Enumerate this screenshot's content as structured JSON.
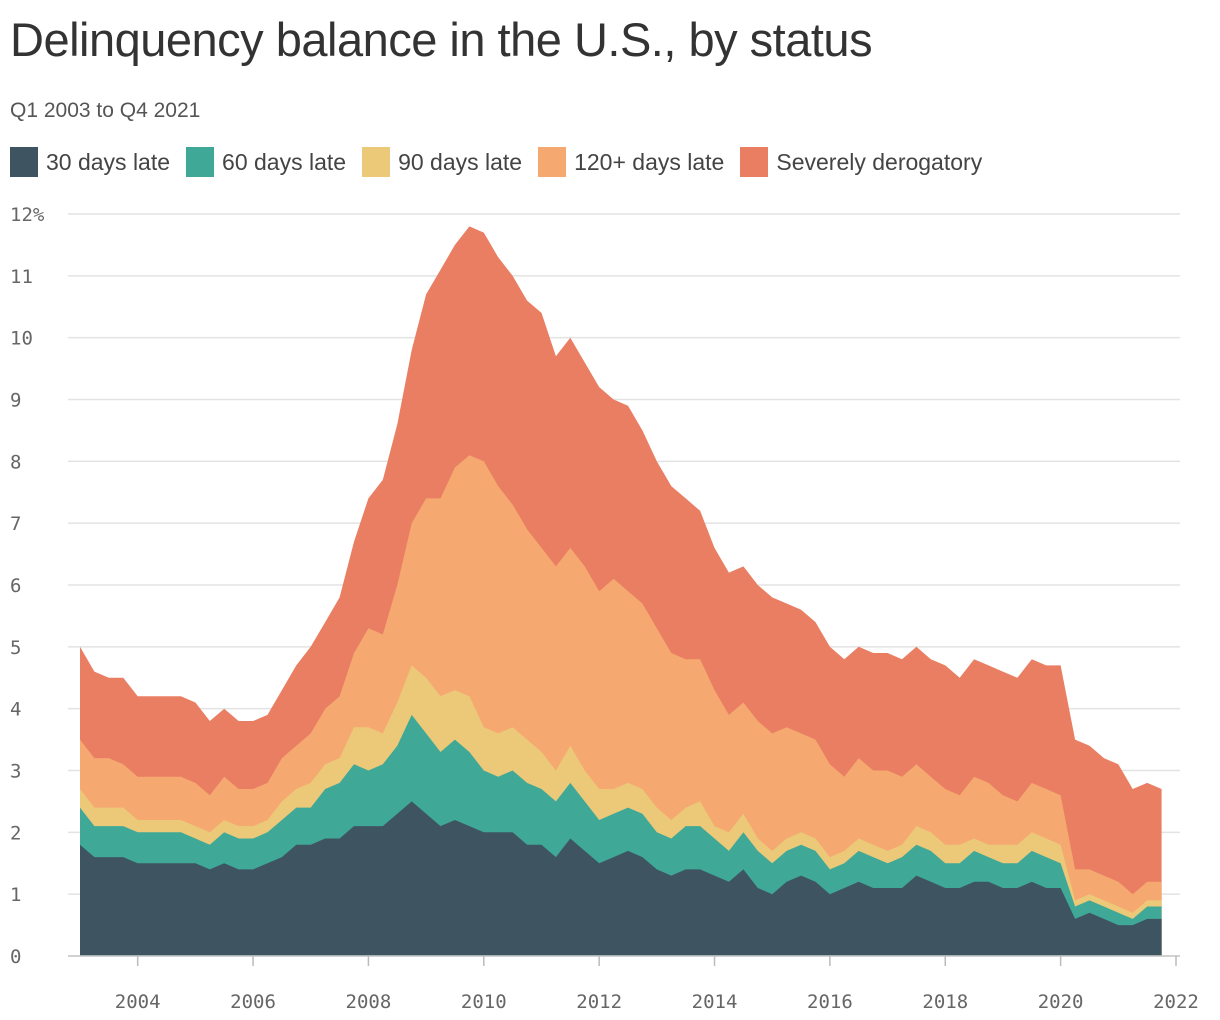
{
  "title": "Delinquency balance in the U.S., by status",
  "subtitle": "Q1 2003 to Q4 2021",
  "legend": [
    {
      "label": "30 days late",
      "color": "#3e5561"
    },
    {
      "label": "60 days late",
      "color": "#3fa897"
    },
    {
      "label": "90 days late",
      "color": "#ecc978"
    },
    {
      "label": "120+ days late",
      "color": "#f5a870"
    },
    {
      "label": "Severely derogatory",
      "color": "#e97e62"
    }
  ],
  "chart_data": {
    "type": "area",
    "stacked": true,
    "x_start": "Q1 2003",
    "x_end": "Q4 2021",
    "yticks": [
      "0",
      "1",
      "2",
      "3",
      "4",
      "5",
      "6",
      "7",
      "8",
      "9",
      "10",
      "11",
      "12%"
    ],
    "xticks": [
      "2004",
      "2006",
      "2008",
      "2010",
      "2012",
      "2014",
      "2016",
      "2018",
      "2020",
      "2022"
    ],
    "ylim": [
      0,
      12
    ],
    "xlim": [
      2003,
      2022
    ],
    "grid": true,
    "legend_position": "top",
    "cumulative_totals": {
      "30 days late": [
        1.8,
        1.6,
        1.6,
        1.6,
        1.5,
        1.5,
        1.5,
        1.5,
        1.5,
        1.4,
        1.5,
        1.4,
        1.4,
        1.5,
        1.6,
        1.8,
        1.8,
        1.9,
        1.9,
        2.1,
        2.1,
        2.1,
        2.3,
        2.5,
        2.3,
        2.1,
        2.2,
        2.1,
        2.0,
        2.0,
        2.0,
        1.8,
        1.8,
        1.6,
        1.9,
        1.7,
        1.5,
        1.6,
        1.7,
        1.6,
        1.4,
        1.3,
        1.4,
        1.4,
        1.3,
        1.2,
        1.4,
        1.1,
        1.0,
        1.2,
        1.3,
        1.2,
        1.0,
        1.1,
        1.2,
        1.1,
        1.1,
        1.1,
        1.3,
        1.2,
        1.1,
        1.1,
        1.2,
        1.2,
        1.1,
        1.1,
        1.2,
        1.1,
        1.1,
        0.6,
        0.7,
        0.6,
        0.5,
        0.5,
        0.6,
        0.6
      ],
      "60 days late": [
        2.4,
        2.1,
        2.1,
        2.1,
        2.0,
        2.0,
        2.0,
        2.0,
        1.9,
        1.8,
        2.0,
        1.9,
        1.9,
        2.0,
        2.2,
        2.4,
        2.4,
        2.7,
        2.8,
        3.1,
        3.0,
        3.1,
        3.4,
        3.9,
        3.6,
        3.3,
        3.5,
        3.3,
        3.0,
        2.9,
        3.0,
        2.8,
        2.7,
        2.5,
        2.8,
        2.5,
        2.2,
        2.3,
        2.4,
        2.3,
        2.0,
        1.9,
        2.1,
        2.1,
        1.9,
        1.7,
        2.0,
        1.7,
        1.5,
        1.7,
        1.8,
        1.7,
        1.4,
        1.5,
        1.7,
        1.6,
        1.5,
        1.6,
        1.8,
        1.7,
        1.5,
        1.5,
        1.7,
        1.6,
        1.5,
        1.5,
        1.7,
        1.6,
        1.5,
        0.8,
        0.9,
        0.8,
        0.7,
        0.6,
        0.8,
        0.8
      ],
      "90 days late": [
        2.7,
        2.4,
        2.4,
        2.4,
        2.2,
        2.2,
        2.2,
        2.2,
        2.1,
        2.0,
        2.2,
        2.1,
        2.1,
        2.2,
        2.5,
        2.7,
        2.8,
        3.1,
        3.2,
        3.7,
        3.7,
        3.6,
        4.1,
        4.7,
        4.5,
        4.2,
        4.3,
        4.2,
        3.7,
        3.6,
        3.7,
        3.5,
        3.3,
        3.0,
        3.4,
        3.0,
        2.7,
        2.7,
        2.8,
        2.7,
        2.4,
        2.2,
        2.4,
        2.5,
        2.1,
        2.0,
        2.3,
        1.9,
        1.7,
        1.9,
        2.0,
        1.9,
        1.6,
        1.7,
        1.9,
        1.8,
        1.7,
        1.8,
        2.1,
        2.0,
        1.8,
        1.8,
        1.9,
        1.8,
        1.8,
        1.8,
        2.0,
        1.9,
        1.8,
        0.9,
        1.0,
        0.9,
        0.8,
        0.7,
        0.9,
        0.9
      ],
      "120+ days late": [
        3.5,
        3.2,
        3.2,
        3.1,
        2.9,
        2.9,
        2.9,
        2.9,
        2.8,
        2.6,
        2.9,
        2.7,
        2.7,
        2.8,
        3.2,
        3.4,
        3.6,
        4.0,
        4.2,
        4.9,
        5.3,
        5.2,
        6.0,
        7.0,
        7.4,
        7.4,
        7.9,
        8.1,
        8.0,
        7.6,
        7.3,
        6.9,
        6.6,
        6.3,
        6.6,
        6.3,
        5.9,
        6.1,
        5.9,
        5.7,
        5.3,
        4.9,
        4.8,
        4.8,
        4.3,
        3.9,
        4.1,
        3.8,
        3.6,
        3.7,
        3.6,
        3.5,
        3.1,
        2.9,
        3.2,
        3.0,
        3.0,
        2.9,
        3.1,
        2.9,
        2.7,
        2.6,
        2.9,
        2.8,
        2.6,
        2.5,
        2.8,
        2.7,
        2.6,
        1.4,
        1.4,
        1.3,
        1.2,
        1.0,
        1.2,
        1.2
      ],
      "Severely derogatory": [
        5.0,
        4.6,
        4.5,
        4.5,
        4.2,
        4.2,
        4.2,
        4.2,
        4.1,
        3.8,
        4.0,
        3.8,
        3.8,
        3.9,
        4.3,
        4.7,
        5.0,
        5.4,
        5.8,
        6.7,
        7.4,
        7.7,
        8.6,
        9.8,
        10.7,
        11.1,
        11.5,
        11.8,
        11.7,
        11.3,
        11.0,
        10.6,
        10.4,
        9.7,
        10.0,
        9.6,
        9.2,
        9.0,
        8.9,
        8.5,
        8.0,
        7.6,
        7.4,
        7.2,
        6.6,
        6.2,
        6.3,
        6.0,
        5.8,
        5.7,
        5.6,
        5.4,
        5.0,
        4.8,
        5.0,
        4.9,
        4.9,
        4.8,
        5.0,
        4.8,
        4.7,
        4.5,
        4.8,
        4.7,
        4.6,
        4.5,
        4.8,
        4.7,
        4.7,
        3.5,
        3.4,
        3.2,
        3.1,
        2.7,
        2.8,
        2.7
      ]
    }
  }
}
